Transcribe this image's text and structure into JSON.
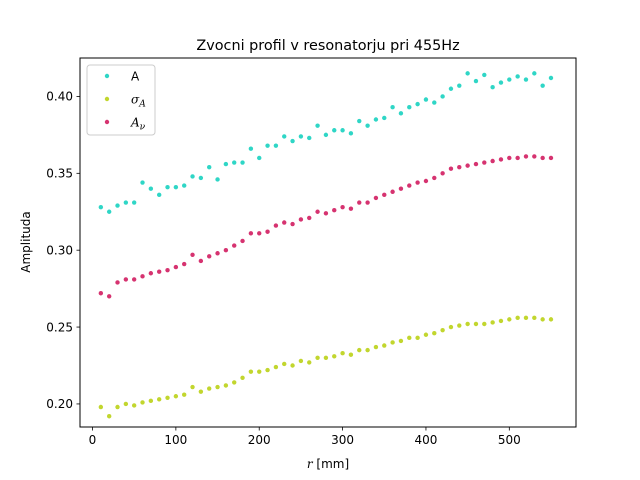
{
  "chart_data": {
    "type": "scatter",
    "title": "Zvocni profil v resonatorju pri 455Hz",
    "xlabel_var": "r",
    "xlabel_unit": " [mm]",
    "ylabel": "Amplituda",
    "xlim": [
      -15,
      580
    ],
    "ylim": [
      0.185,
      0.425
    ],
    "xticks": [
      0,
      100,
      200,
      300,
      400,
      500
    ],
    "yticks": [
      0.2,
      0.25,
      0.3,
      0.35,
      0.4
    ],
    "ytick_labels": [
      "0.20",
      "0.25",
      "0.30",
      "0.35",
      "0.40"
    ],
    "grid": false,
    "legend_position": "top-left",
    "x": [
      10,
      20,
      30,
      40,
      50,
      60,
      70,
      80,
      90,
      100,
      110,
      120,
      130,
      140,
      150,
      160,
      170,
      180,
      190,
      200,
      210,
      220,
      230,
      240,
      250,
      260,
      270,
      280,
      290,
      300,
      310,
      320,
      330,
      340,
      350,
      360,
      370,
      380,
      390,
      400,
      410,
      420,
      430,
      440,
      450,
      460,
      470,
      480,
      490,
      500,
      510,
      520,
      530,
      540,
      550
    ],
    "series": [
      {
        "name": "A",
        "color": "#2fd6c6",
        "values": [
          0.328,
          0.325,
          0.329,
          0.331,
          0.331,
          0.344,
          0.34,
          0.336,
          0.341,
          0.341,
          0.342,
          0.348,
          0.347,
          0.354,
          0.346,
          0.356,
          0.357,
          0.357,
          0.366,
          0.36,
          0.368,
          0.368,
          0.374,
          0.371,
          0.374,
          0.373,
          0.381,
          0.375,
          0.378,
          0.378,
          0.376,
          0.384,
          0.381,
          0.385,
          0.386,
          0.393,
          0.389,
          0.393,
          0.395,
          0.398,
          0.396,
          0.4,
          0.405,
          0.407,
          0.415,
          0.41,
          0.414,
          0.406,
          0.409,
          0.411,
          0.413,
          0.411,
          0.415,
          0.407,
          0.412
        ]
      },
      {
        "name": "σ",
        "sub": "A",
        "color": "#c2d62e",
        "values": [
          0.198,
          0.192,
          0.198,
          0.2,
          0.199,
          0.201,
          0.202,
          0.203,
          0.204,
          0.205,
          0.206,
          0.211,
          0.208,
          0.21,
          0.211,
          0.212,
          0.214,
          0.217,
          0.221,
          0.221,
          0.222,
          0.224,
          0.226,
          0.225,
          0.228,
          0.227,
          0.23,
          0.23,
          0.231,
          0.233,
          0.232,
          0.235,
          0.235,
          0.237,
          0.238,
          0.24,
          0.241,
          0.243,
          0.243,
          0.245,
          0.246,
          0.248,
          0.25,
          0.251,
          0.252,
          0.252,
          0.252,
          0.253,
          0.254,
          0.255,
          0.256,
          0.256,
          0.256,
          0.255,
          0.255
        ]
      },
      {
        "name": "A",
        "sub": "ν",
        "color": "#d63370",
        "values": [
          0.272,
          0.27,
          0.279,
          0.281,
          0.281,
          0.283,
          0.285,
          0.286,
          0.287,
          0.289,
          0.291,
          0.297,
          0.293,
          0.296,
          0.298,
          0.3,
          0.303,
          0.306,
          0.311,
          0.311,
          0.312,
          0.316,
          0.318,
          0.317,
          0.32,
          0.321,
          0.325,
          0.324,
          0.326,
          0.328,
          0.327,
          0.331,
          0.331,
          0.334,
          0.336,
          0.338,
          0.34,
          0.342,
          0.344,
          0.345,
          0.347,
          0.35,
          0.353,
          0.354,
          0.355,
          0.356,
          0.357,
          0.358,
          0.359,
          0.36,
          0.36,
          0.361,
          0.361,
          0.36,
          0.36
        ]
      }
    ]
  }
}
